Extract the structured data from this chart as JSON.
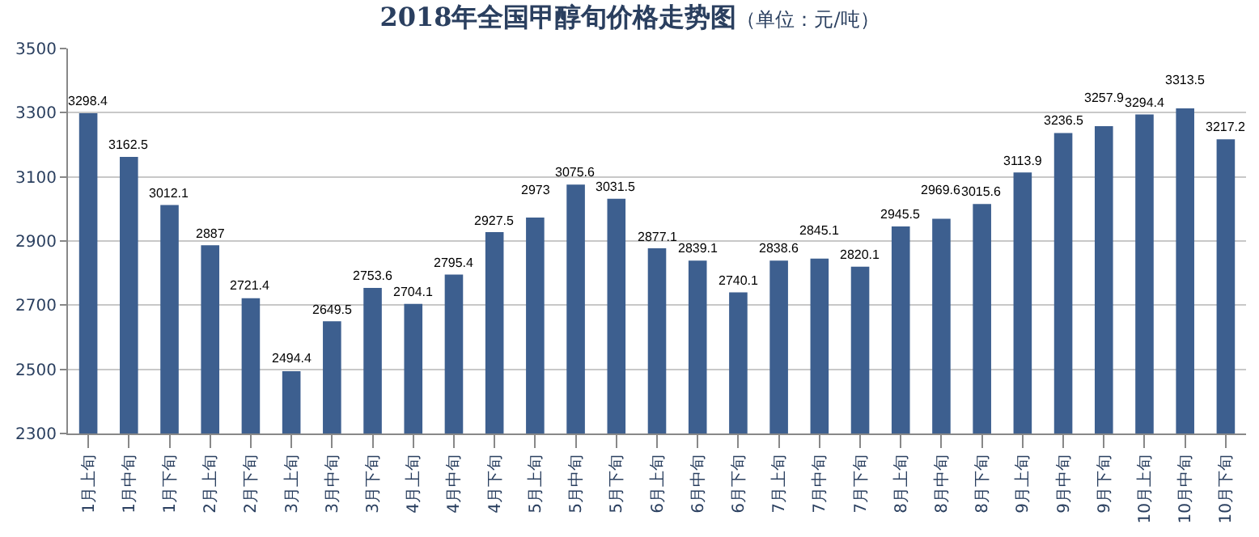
{
  "chart_data": {
    "type": "bar",
    "title": "2018年全国甲醇旬价格走势图",
    "subtitle": "（单位：元/吨）",
    "categories": [
      "1月上旬",
      "1月中旬",
      "1月下旬",
      "2月上旬",
      "2月下旬",
      "3月上旬",
      "3月中旬",
      "3月下旬",
      "4月上旬",
      "4月中旬",
      "4月下旬",
      "5月上旬",
      "5月中旬",
      "5月下旬",
      "6月上旬",
      "6月中旬",
      "6月下旬",
      "7月上旬",
      "7月中旬",
      "7月下旬",
      "8月上旬",
      "8月中旬",
      "8月下旬",
      "9月上旬",
      "9月中旬",
      "9月下旬",
      "10月上旬",
      "10月中旬",
      "10月下旬"
    ],
    "values": [
      3298.4,
      3162.5,
      3012.1,
      2887,
      2721.4,
      2494.4,
      2649.5,
      2753.6,
      2704.1,
      2795.4,
      2927.5,
      2973,
      3075.6,
      3031.5,
      2877.1,
      2839.1,
      2740.1,
      2838.6,
      2845.1,
      2820.1,
      2945.5,
      2969.6,
      3015.6,
      3113.9,
      3236.5,
      3257.9,
      3294.4,
      3313.5,
      3217.2
    ],
    "color": "#3d5f8f",
    "ylim": [
      2300,
      3500
    ],
    "yticks": [
      2300,
      2500,
      2700,
      2900,
      3100,
      3300,
      3500
    ],
    "grid": "y",
    "data_labels": true
  }
}
